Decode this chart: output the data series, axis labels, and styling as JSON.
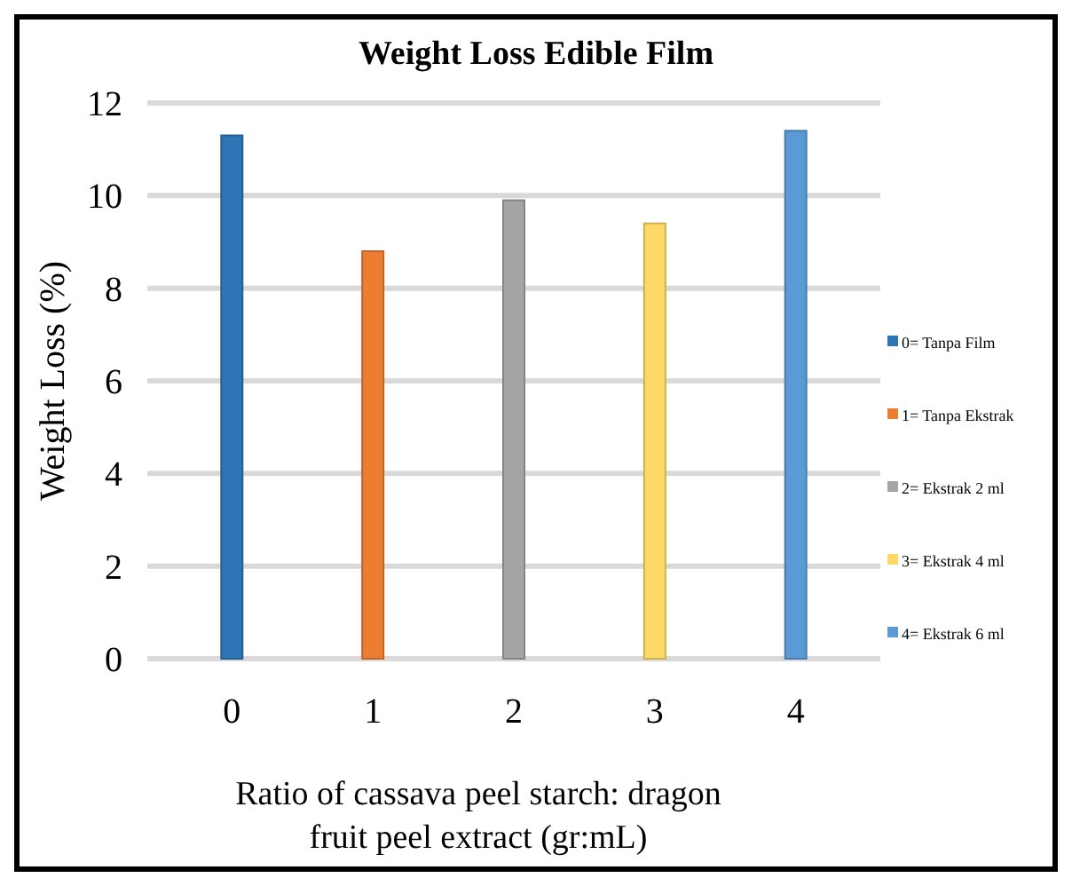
{
  "chart_data": {
    "type": "bar",
    "title": "Weight Loss  Edible Film",
    "xlabel": "Ratio of cassava peel starch: dragon fruit peel extract (gr:mL)",
    "ylabel": "Weight Loss (%)",
    "categories": [
      "0",
      "1",
      "2",
      "3",
      "4"
    ],
    "series": [
      {
        "name": "0= Tanpa Film",
        "color": "#2e75b6",
        "values": [
          11.3,
          null,
          null,
          null,
          null
        ]
      },
      {
        "name": "1= Tanpa Ekstrak",
        "color": "#ed7d31",
        "values": [
          null,
          8.8,
          null,
          null,
          null
        ]
      },
      {
        "name": "2= Ekstrak 2 ml",
        "color": "#a5a5a5",
        "values": [
          null,
          null,
          9.9,
          null,
          null
        ]
      },
      {
        "name": "3= Ekstrak 4  ml",
        "color": "#ffd966",
        "values": [
          null,
          null,
          null,
          9.4,
          null
        ]
      },
      {
        "name": "4= Ekstrak 6 ml",
        "color": "#5b9bd5",
        "values": [
          null,
          null,
          null,
          null,
          11.4
        ]
      }
    ],
    "ylim": [
      0,
      12
    ],
    "yticks": [
      0,
      2,
      4,
      6,
      8,
      10,
      12
    ],
    "grid": "y",
    "legend": "right"
  }
}
